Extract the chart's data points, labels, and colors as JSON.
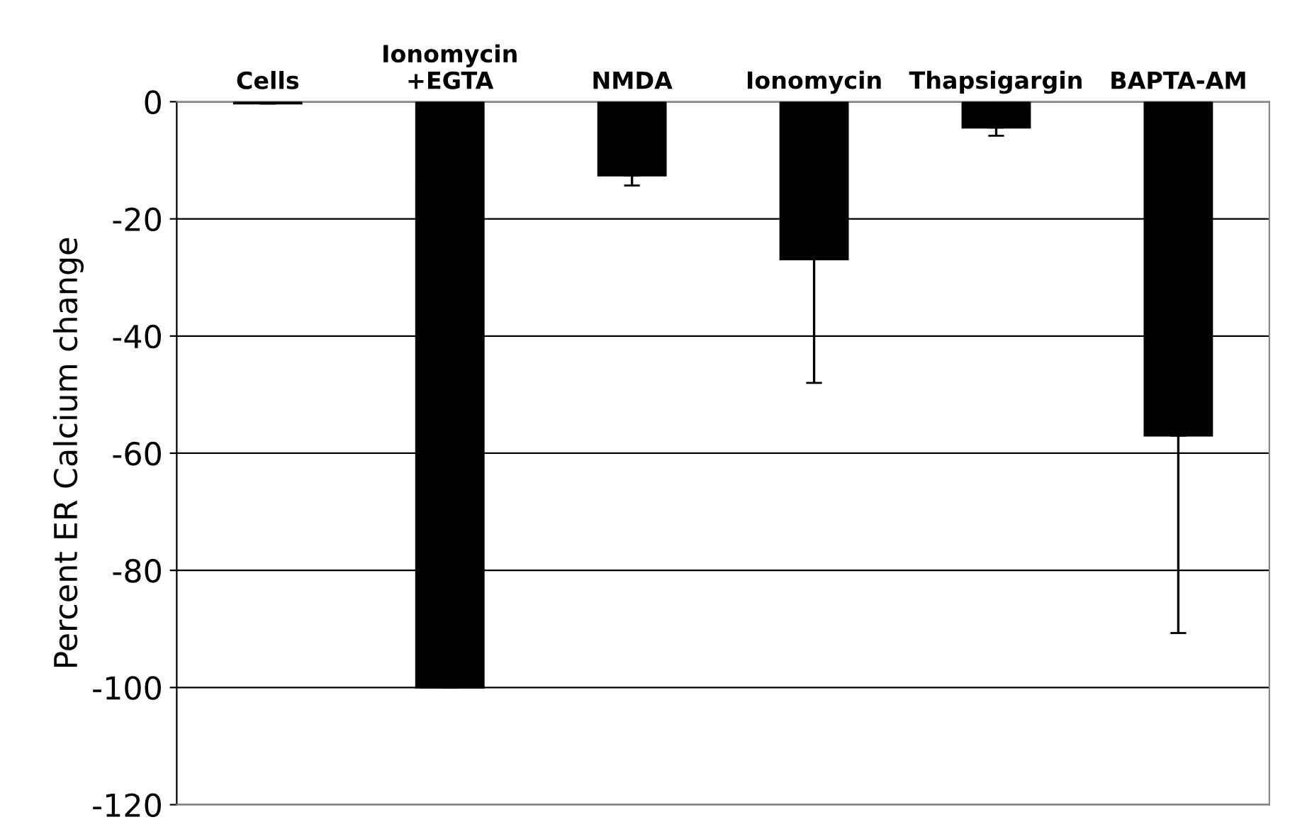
{
  "chart_data": {
    "type": "bar",
    "ylabel": "Percent ER Calcium change",
    "categories": [
      "Cells",
      "Ionomycin\n+EGTA",
      "NMDA",
      "Ionomycin",
      "Thapsigargin",
      "BAPTA-AM"
    ],
    "values": [
      -0.3,
      -100,
      -12.6,
      -26.9,
      -4.4,
      -57
    ],
    "errors": [
      null,
      null,
      [
        -14.3,
        -12.6
      ],
      [
        -48,
        -26.9
      ],
      [
        -5.8,
        -4.4
      ],
      [
        -90.7,
        -57
      ]
    ],
    "color": "#000000",
    "ylim": [
      -120,
      0
    ],
    "yticks": [
      -120,
      -100,
      -80,
      -60,
      -40,
      -20,
      0
    ],
    "grid": "y"
  }
}
